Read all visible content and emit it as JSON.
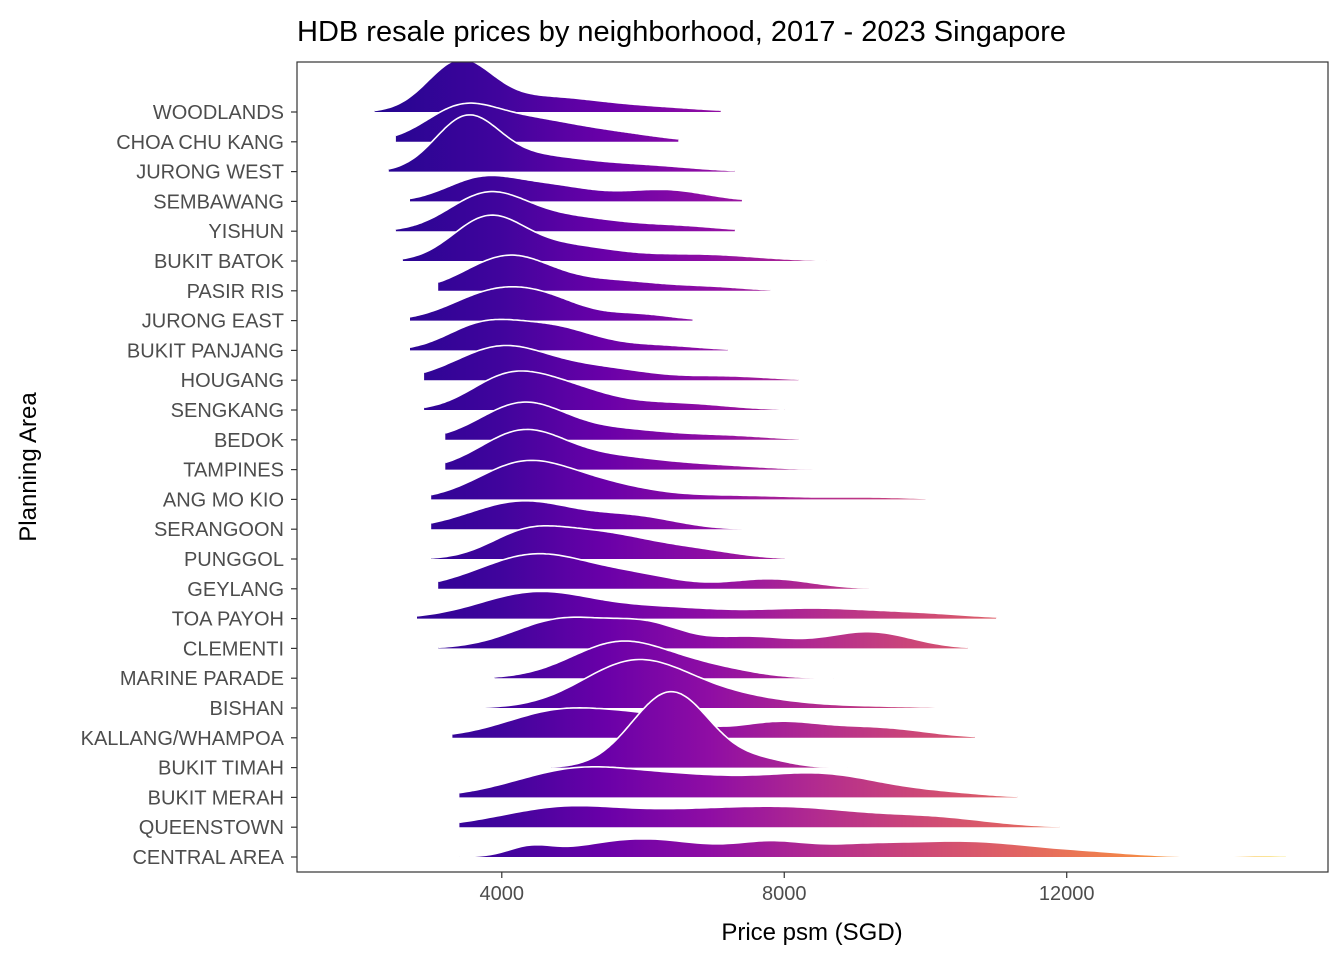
{
  "chart_data": {
    "type": "ridgeline",
    "title": "HDB resale prices by neighborhood, 2017 - 2023 Singapore",
    "xlabel": "Price psm (SGD)",
    "ylabel": "Planning Area",
    "xlim": [
      1100,
      15700
    ],
    "x_ticks": [
      4000,
      8000,
      12000
    ],
    "x_tick_labels": [
      "4000",
      "8000",
      "12000"
    ],
    "fill_colormap": "plasma (dark blue-purple at low price to yellow at high price)",
    "outline_color": "#ffffff",
    "grid": false,
    "legend": "none",
    "categories": [
      "CENTRAL AREA",
      "QUEENSTOWN",
      "BUKIT MERAH",
      "BUKIT TIMAH",
      "KALLANG/WHAMPOA",
      "BISHAN",
      "MARINE PARADE",
      "CLEMENTI",
      "TOA PAYOH",
      "GEYLANG",
      "PUNGGOL",
      "SERANGOON",
      "ANG MO KIO",
      "TAMPINES",
      "BEDOK",
      "SENGKANG",
      "HOUGANG",
      "BUKIT PANJANG",
      "JURONG EAST",
      "PASIR RIS",
      "BUKIT BATOK",
      "YISHUN",
      "SEMBAWANG",
      "JURONG WEST",
      "CHOA CHU KANG",
      "WOODLANDS"
    ],
    "series": [
      {
        "name": "CENTRAL AREA",
        "range": [
          3400,
          15100
        ],
        "peaks": [
          [
            4400,
            0.25,
            300
          ],
          [
            6000,
            0.55,
            900
          ],
          [
            7800,
            0.35,
            500
          ],
          [
            9000,
            0.3,
            700
          ],
          [
            10600,
            0.45,
            900
          ],
          [
            12300,
            0.12,
            700
          ],
          [
            14800,
            0.04,
            400
          ]
        ]
      },
      {
        "name": "QUEENSTOWN",
        "range": [
          3400,
          11900
        ],
        "peaks": [
          [
            4900,
            0.6,
            900
          ],
          [
            6800,
            0.4,
            900
          ],
          [
            8300,
            0.48,
            900
          ],
          [
            10100,
            0.28,
            800
          ]
        ]
      },
      {
        "name": "BUKIT MERAH",
        "range": [
          3400,
          11300
        ],
        "peaks": [
          [
            5100,
            0.85,
            900
          ],
          [
            6700,
            0.45,
            800
          ],
          [
            8500,
            0.7,
            900
          ],
          [
            10300,
            0.1,
            600
          ]
        ]
      },
      {
        "name": "BUKIT TIMAH",
        "range": [
          4700,
          8900
        ],
        "peaks": [
          [
            6400,
            2.3,
            550
          ],
          [
            7700,
            0.2,
            400
          ]
        ]
      },
      {
        "name": "KALLANG/WHAMPOA",
        "range": [
          3300,
          10700
        ],
        "peaks": [
          [
            4900,
            0.85,
            800
          ],
          [
            6200,
            0.45,
            600
          ],
          [
            7900,
            0.45,
            600
          ],
          [
            9300,
            0.3,
            700
          ]
        ]
      },
      {
        "name": "BISHAN",
        "range": [
          3000,
          11400
        ],
        "peaks": [
          [
            5900,
            1.4,
            750
          ],
          [
            7300,
            0.3,
            800
          ],
          [
            9200,
            0.05,
            800
          ]
        ]
      },
      {
        "name": "MARINE PARADE",
        "range": [
          3900,
          8700
        ],
        "peaks": [
          [
            5700,
            1.1,
            700
          ],
          [
            7000,
            0.25,
            600
          ]
        ]
      },
      {
        "name": "CLEMENTI",
        "range": [
          3100,
          10600
        ],
        "peaks": [
          [
            4900,
            0.9,
            700
          ],
          [
            6100,
            0.6,
            500
          ],
          [
            7500,
            0.35,
            600
          ],
          [
            9200,
            0.5,
            600
          ]
        ]
      },
      {
        "name": "TOA PAYOH",
        "range": [
          2800,
          11000
        ],
        "peaks": [
          [
            4500,
            0.8,
            800
          ],
          [
            6300,
            0.3,
            800
          ],
          [
            8400,
            0.3,
            900
          ],
          [
            10000,
            0.12,
            700
          ]
        ]
      },
      {
        "name": "GEYLANG",
        "range": [
          3100,
          9200
        ],
        "peaks": [
          [
            4500,
            1.05,
            800
          ],
          [
            6000,
            0.3,
            600
          ],
          [
            7800,
            0.3,
            600
          ]
        ]
      },
      {
        "name": "PUNGGOL",
        "range": [
          3000,
          8000
        ],
        "peaks": [
          [
            4300,
            0.55,
            500
          ],
          [
            5300,
            0.8,
            800
          ],
          [
            6800,
            0.2,
            600
          ]
        ]
      },
      {
        "name": "SERANGOON",
        "range": [
          3000,
          7900
        ],
        "peaks": [
          [
            4300,
            0.85,
            750
          ],
          [
            5900,
            0.35,
            600
          ]
        ]
      },
      {
        "name": "ANG MO KIO",
        "range": [
          3000,
          10000
        ],
        "peaks": [
          [
            4300,
            1.05,
            650
          ],
          [
            5400,
            0.4,
            700
          ],
          [
            7300,
            0.12,
            900
          ],
          [
            9300,
            0.06,
            600
          ]
        ]
      },
      {
        "name": "TAMPINES",
        "range": [
          3200,
          8400
        ],
        "peaks": [
          [
            4300,
            1.15,
            600
          ],
          [
            5600,
            0.35,
            700
          ],
          [
            7000,
            0.12,
            700
          ]
        ]
      },
      {
        "name": "BEDOK",
        "range": [
          3200,
          8200
        ],
        "peaks": [
          [
            4300,
            1.1,
            600
          ],
          [
            5700,
            0.3,
            700
          ],
          [
            7200,
            0.12,
            600
          ]
        ]
      },
      {
        "name": "SENGKANG",
        "range": [
          2900,
          8000
        ],
        "peaks": [
          [
            4000,
            0.6,
            500
          ],
          [
            4700,
            0.8,
            700
          ],
          [
            6500,
            0.2,
            700
          ]
        ]
      },
      {
        "name": "HOUGANG",
        "range": [
          2900,
          8200
        ],
        "peaks": [
          [
            4000,
            1.0,
            650
          ],
          [
            5400,
            0.35,
            700
          ],
          [
            7200,
            0.12,
            600
          ]
        ]
      },
      {
        "name": "BUKIT PANJANG",
        "range": [
          2700,
          7200
        ],
        "peaks": [
          [
            3700,
            0.7,
            500
          ],
          [
            4700,
            0.7,
            600
          ],
          [
            6200,
            0.15,
            600
          ]
        ]
      },
      {
        "name": "JURONG EAST",
        "range": [
          2700,
          6700
        ],
        "peaks": [
          [
            3900,
            0.85,
            600
          ],
          [
            4700,
            0.45,
            500
          ],
          [
            5900,
            0.2,
            500
          ]
        ]
      },
      {
        "name": "PASIR RIS",
        "range": [
          3100,
          7800
        ],
        "peaks": [
          [
            4100,
            1.05,
            600
          ],
          [
            5600,
            0.3,
            700
          ],
          [
            7000,
            0.1,
            500
          ]
        ]
      },
      {
        "name": "BUKIT BATOK",
        "range": [
          2600,
          8600
        ],
        "peaks": [
          [
            3800,
            1.25,
            500
          ],
          [
            4900,
            0.45,
            700
          ],
          [
            6800,
            0.2,
            800
          ]
        ]
      },
      {
        "name": "YISHUN",
        "range": [
          2500,
          7300
        ],
        "peaks": [
          [
            3800,
            1.1,
            550
          ],
          [
            5000,
            0.4,
            700
          ],
          [
            6500,
            0.15,
            600
          ]
        ]
      },
      {
        "name": "SEMBAWANG",
        "range": [
          2700,
          7400
        ],
        "peaks": [
          [
            3700,
            0.65,
            500
          ],
          [
            4700,
            0.45,
            600
          ],
          [
            6300,
            0.35,
            600
          ]
        ]
      },
      {
        "name": "JURONG WEST",
        "range": [
          2400,
          7300
        ],
        "peaks": [
          [
            3500,
            1.55,
            450
          ],
          [
            4500,
            0.45,
            700
          ],
          [
            6000,
            0.18,
            700
          ]
        ]
      },
      {
        "name": "CHOA CHU KANG",
        "range": [
          2500,
          6500
        ],
        "peaks": [
          [
            3400,
            0.9,
            500
          ],
          [
            4400,
            0.65,
            700
          ],
          [
            5700,
            0.2,
            600
          ]
        ]
      },
      {
        "name": "WOODLANDS",
        "range": [
          2200,
          7100
        ],
        "peaks": [
          [
            3400,
            1.45,
            450
          ],
          [
            4600,
            0.45,
            800
          ],
          [
            6200,
            0.12,
            700
          ]
        ]
      }
    ]
  }
}
